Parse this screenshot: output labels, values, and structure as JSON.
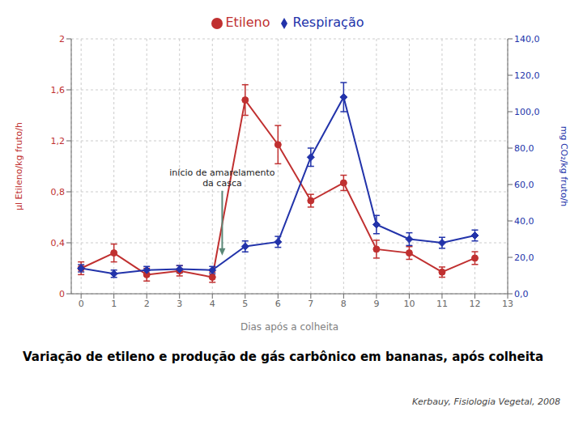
{
  "chart_data": {
    "type": "line",
    "title": "Variação de etileno e produção de gás carbônico em bananas, após colheita",
    "xlabel": "Dias após a colheita",
    "ylabel": "µl Etileno/kg fruto/h",
    "y2label": "mg CO₂/kg fruto/h",
    "x": [
      0,
      1,
      2,
      3,
      4,
      5,
      6,
      7,
      8,
      9,
      10,
      11,
      12
    ],
    "xlim": [
      -0.3,
      13
    ],
    "xticks": [
      0,
      1,
      2,
      3,
      4,
      5,
      6,
      7,
      8,
      9,
      10,
      11,
      12,
      13
    ],
    "ylim": [
      0,
      2.0
    ],
    "yticks": [
      0,
      {
        "value": 0.4,
        "label": "0,4"
      },
      {
        "value": 0.8,
        "label": "0,8"
      },
      {
        "value": 1.2,
        "label": "1,2"
      },
      {
        "value": 1.6,
        "label": "1,6"
      },
      2
    ],
    "y2lim": [
      0.0,
      140.0
    ],
    "y2ticks": [
      {
        "value": 0.0,
        "label": "0,0"
      },
      {
        "value": 20.0,
        "label": "20,0"
      },
      {
        "value": 40.0,
        "label": "40,0"
      },
      {
        "value": 60.0,
        "label": "60,0"
      },
      {
        "value": 80.0,
        "label": "80,0"
      },
      {
        "value": 100.0,
        "label": "100,0"
      },
      {
        "value": 120.0,
        "label": "120,0"
      },
      {
        "value": 140.0,
        "label": "140,0"
      }
    ],
    "grid": true,
    "legend": "top",
    "series": [
      {
        "name": "Etileno",
        "color": "#c03030",
        "marker": "circle",
        "axis": "y",
        "values": [
          0.2,
          0.32,
          0.15,
          0.18,
          0.13,
          1.52,
          1.17,
          0.73,
          0.87,
          0.35,
          0.32,
          0.17,
          0.28
        ],
        "errors": [
          0.05,
          0.07,
          0.05,
          0.04,
          0.04,
          0.12,
          0.15,
          0.05,
          0.06,
          0.07,
          0.05,
          0.04,
          0.05
        ]
      },
      {
        "name": "Respiração",
        "color": "#2233aa",
        "marker": "diamond",
        "axis": "y2",
        "values": [
          14.0,
          11.0,
          13.0,
          13.5,
          13.0,
          26.0,
          28.5,
          75.0,
          108.0,
          38.0,
          30.0,
          28.0,
          32.0
        ],
        "errors": [
          2.0,
          2.0,
          2.0,
          2.0,
          2.0,
          3.0,
          3.0,
          5.0,
          8.0,
          5.0,
          3.5,
          3.0,
          3.0
        ]
      }
    ],
    "annotations": [
      {
        "text": "início de amarelamento\nda casca",
        "x": 4.3,
        "y": 0.3,
        "color": "#5b8878"
      }
    ],
    "source": "Kerbauy, Fisiologia Vegetal, 2008"
  }
}
